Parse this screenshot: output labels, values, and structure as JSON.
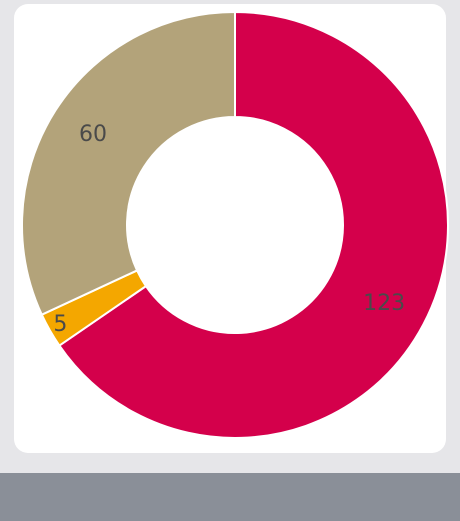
{
  "chart_data": {
    "type": "pie",
    "variant": "donut",
    "categories": [
      "",
      "",
      ""
    ],
    "values": [
      123,
      5,
      60
    ],
    "labels": [
      "123",
      "5",
      "60"
    ],
    "colors": [
      "#d4004b",
      "#f4a700",
      "#b3a37a"
    ],
    "separator_color": "#ffffff",
    "legend": "none",
    "title": ""
  },
  "colors": {
    "background": "#e6e6e9",
    "card": "#ffffff",
    "footer_bar": "#8a8f98"
  }
}
